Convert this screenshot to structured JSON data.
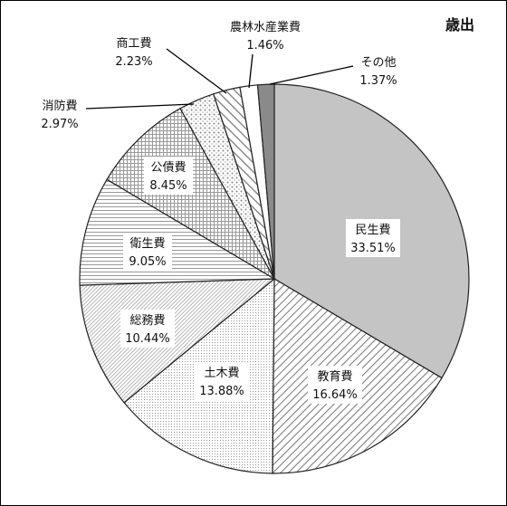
{
  "chart_data": {
    "type": "pie",
    "title": "歳出",
    "start": "top",
    "direction": "clockwise",
    "slices": [
      {
        "label": "民生費",
        "value": 33.51,
        "pct_text": "33.51%",
        "pattern": "solid-lightgray"
      },
      {
        "label": "教育費",
        "value": 16.64,
        "pct_text": "16.64%",
        "pattern": "diagonal-hatch"
      },
      {
        "label": "土木費",
        "value": 13.88,
        "pct_text": "13.88%",
        "pattern": "fine-dots"
      },
      {
        "label": "総務費",
        "value": 10.44,
        "pct_text": "10.44%",
        "pattern": "dense-diagonal"
      },
      {
        "label": "衛生費",
        "value": 9.05,
        "pct_text": "9.05%",
        "pattern": "horizontal-lines"
      },
      {
        "label": "公債費",
        "value": 8.45,
        "pct_text": "8.45%",
        "pattern": "grid"
      },
      {
        "label": "消防費",
        "value": 2.97,
        "pct_text": "2.97%",
        "pattern": "coarse-dots"
      },
      {
        "label": "商工費",
        "value": 2.23,
        "pct_text": "2.23%",
        "pattern": "wide-diagonal"
      },
      {
        "label": "農林水産業費",
        "value": 1.46,
        "pct_text": "1.46%",
        "pattern": "white"
      },
      {
        "label": "その他",
        "value": 1.37,
        "pct_text": "1.37%",
        "pattern": "solid-darkgray"
      }
    ]
  }
}
